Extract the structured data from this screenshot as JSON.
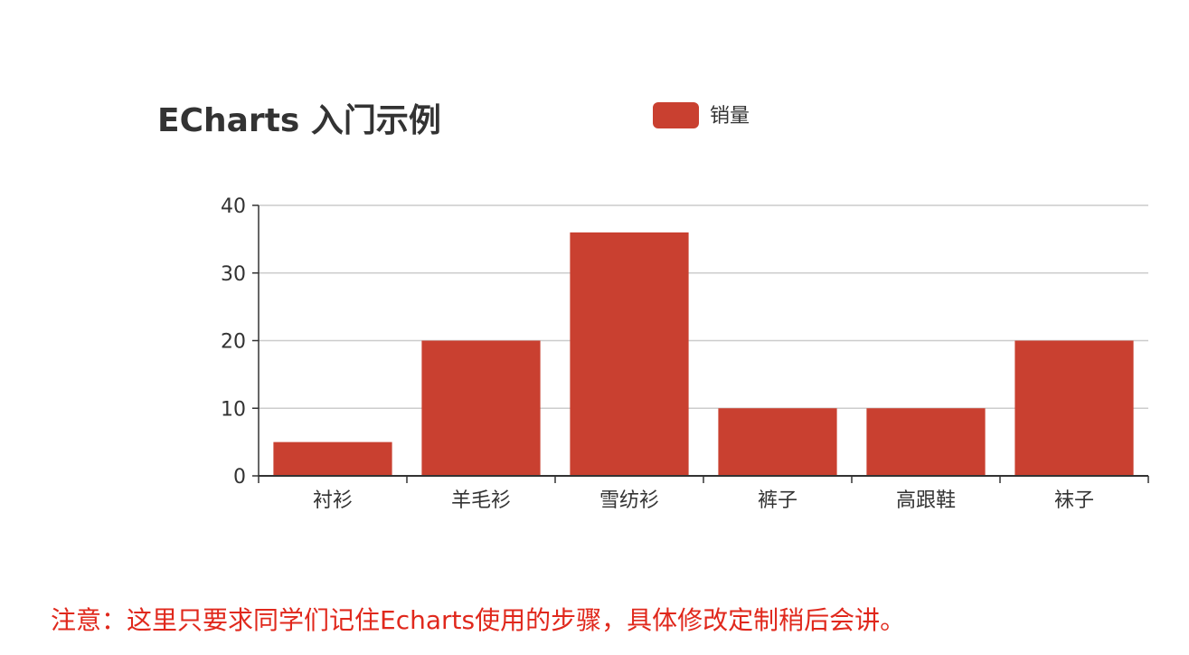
{
  "chart_data": {
    "type": "bar",
    "title": "ECharts 入门示例",
    "legend": {
      "position": "top-center",
      "entries": [
        "销量"
      ]
    },
    "categories": [
      "衬衫",
      "羊毛衫",
      "雪纺衫",
      "裤子",
      "高跟鞋",
      "袜子"
    ],
    "series": [
      {
        "name": "销量",
        "values": [
          5,
          20,
          36,
          10,
          10,
          20
        ]
      }
    ],
    "xlabel": "",
    "ylabel": "",
    "ylim": [
      0,
      40
    ],
    "yticks": [
      0,
      10,
      20,
      30,
      40
    ],
    "grid": true
  },
  "colors": {
    "bar": "#c94030",
    "title": "#333333",
    "axis": "#333333",
    "gridline": "#cccccc",
    "note": "#e0281c"
  },
  "note": "注意：这里只要求同学们记住Echarts使用的步骤，具体修改定制稍后会讲。"
}
